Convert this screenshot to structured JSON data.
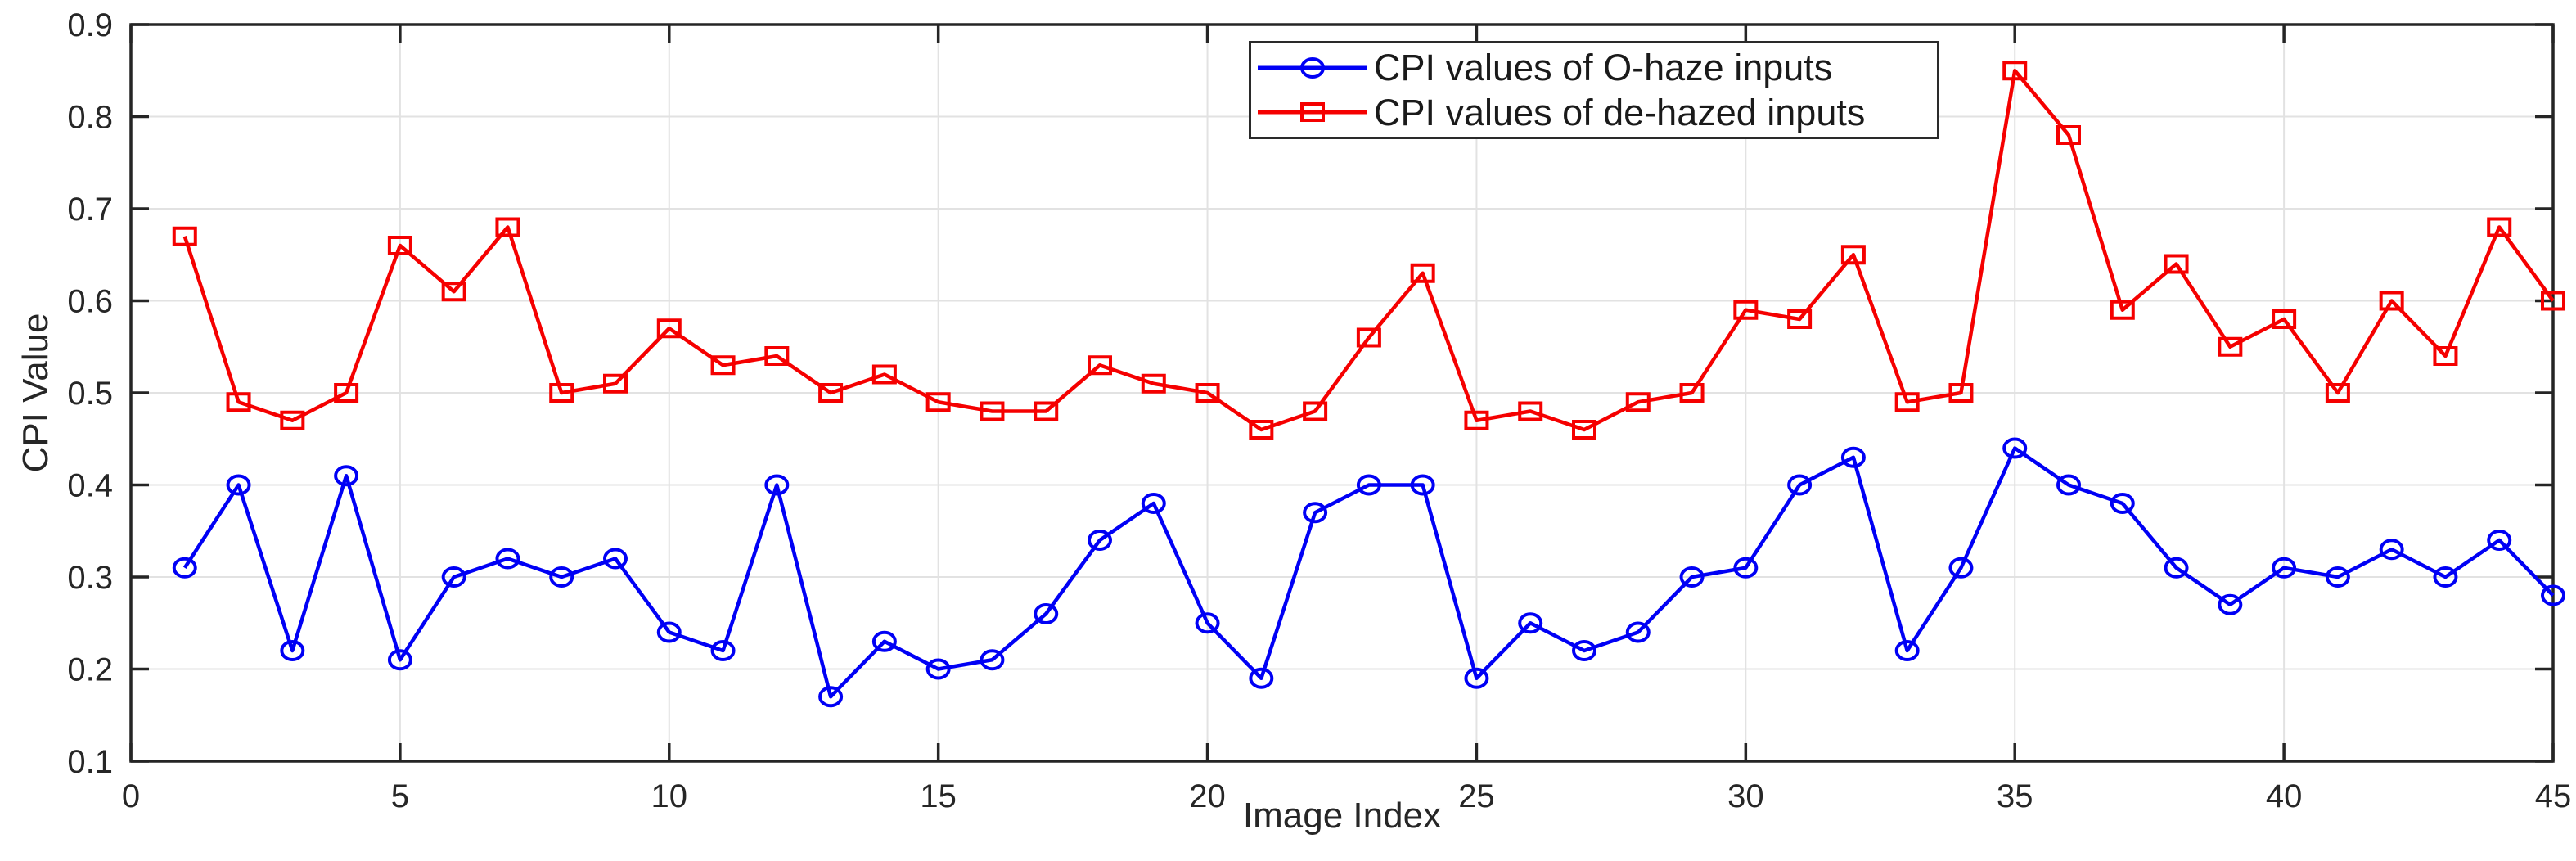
{
  "chart_data": {
    "type": "line",
    "title": "",
    "xlabel": "Image Index",
    "ylabel": "CPI Value",
    "xlim": [
      0,
      45
    ],
    "ylim": [
      0.1,
      0.9
    ],
    "xticks": [
      0,
      5,
      10,
      15,
      20,
      25,
      30,
      35,
      40,
      45
    ],
    "xtick_labels": [
      "0",
      "5",
      "10",
      "15",
      "20",
      "25",
      "30",
      "35",
      "40",
      "45"
    ],
    "yticks": [
      0.1,
      0.2,
      0.3,
      0.4,
      0.5,
      0.6,
      0.7,
      0.8,
      0.9
    ],
    "ytick_labels": [
      "0.1",
      "0.2",
      "0.3",
      "0.4",
      "0.5",
      "0.6",
      "0.7",
      "0.8",
      "0.9"
    ],
    "grid": true,
    "legend_position": "top-right-inside",
    "x": [
      1,
      2,
      3,
      4,
      5,
      6,
      7,
      8,
      9,
      10,
      11,
      12,
      13,
      14,
      15,
      16,
      17,
      18,
      19,
      20,
      21,
      22,
      23,
      24,
      25,
      26,
      27,
      28,
      29,
      30,
      31,
      32,
      33,
      34,
      35,
      36,
      37,
      38,
      39,
      40,
      41,
      42,
      43,
      44,
      45
    ],
    "series": [
      {
        "name": "CPI values of O-haze inputs",
        "color": "#0000f5",
        "marker": "circle",
        "values": [
          0.31,
          0.4,
          0.22,
          0.41,
          0.21,
          0.3,
          0.32,
          0.3,
          0.32,
          0.24,
          0.22,
          0.4,
          0.17,
          0.23,
          0.2,
          0.21,
          0.26,
          0.34,
          0.38,
          0.25,
          0.19,
          0.37,
          0.4,
          0.4,
          0.19,
          0.25,
          0.22,
          0.24,
          0.3,
          0.31,
          0.4,
          0.43,
          0.22,
          0.31,
          0.44,
          0.4,
          0.38,
          0.31,
          0.27,
          0.31,
          0.3,
          0.33,
          0.3,
          0.34,
          0.28
        ]
      },
      {
        "name": "CPI values of de-hazed inputs",
        "color": "#f50000",
        "marker": "square",
        "values": [
          0.67,
          0.49,
          0.47,
          0.5,
          0.66,
          0.61,
          0.68,
          0.5,
          0.51,
          0.57,
          0.53,
          0.54,
          0.5,
          0.52,
          0.49,
          0.48,
          0.48,
          0.53,
          0.51,
          0.5,
          0.46,
          0.48,
          0.56,
          0.63,
          0.47,
          0.48,
          0.46,
          0.49,
          0.5,
          0.59,
          0.58,
          0.65,
          0.49,
          0.5,
          0.85,
          0.78,
          0.59,
          0.64,
          0.55,
          0.58,
          0.5,
          0.6,
          0.54,
          0.68,
          0.6
        ]
      }
    ],
    "colors": {
      "grid": "#e2e2e2",
      "axis": "#252525",
      "tick_text": "#262626",
      "background": "#ffffff"
    }
  }
}
